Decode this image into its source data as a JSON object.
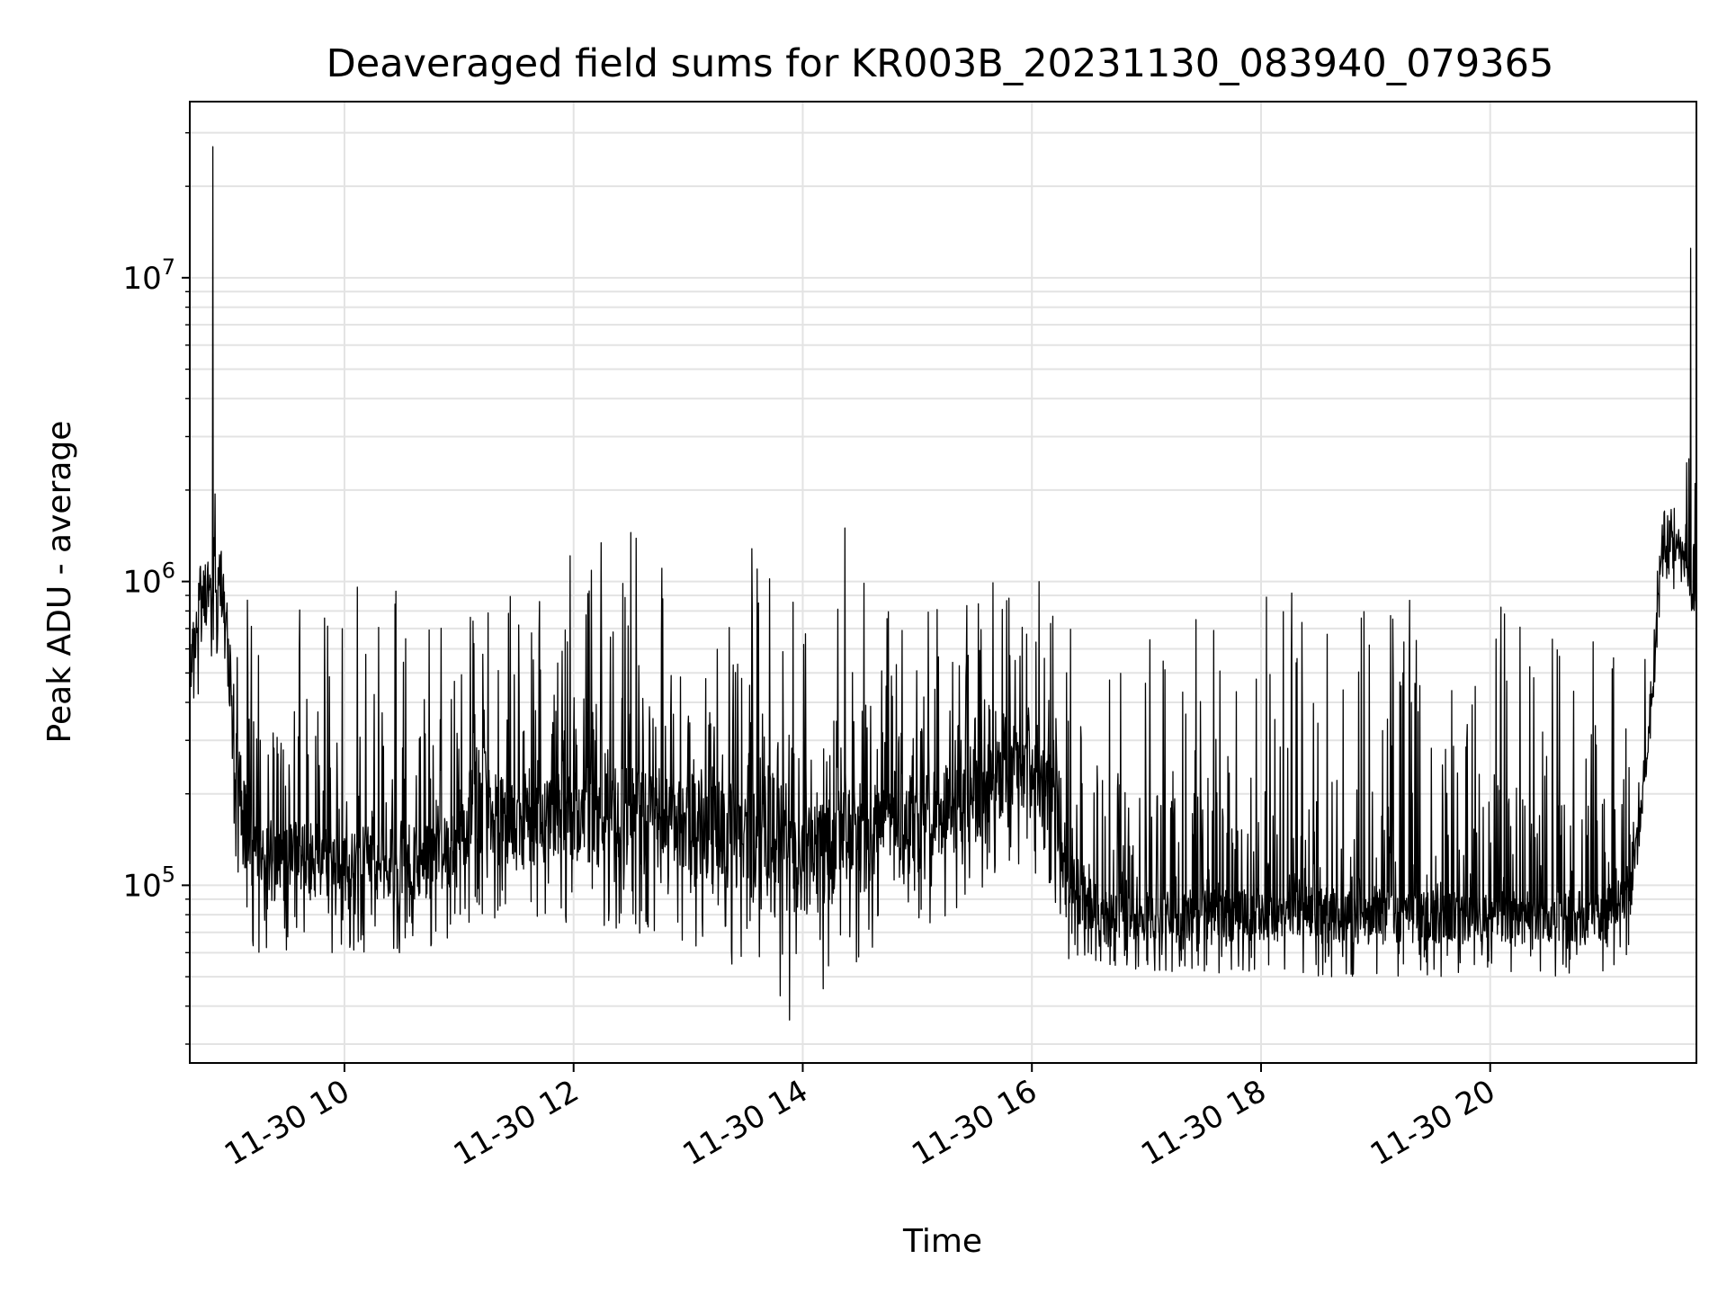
{
  "chart_data": {
    "type": "line",
    "title": "Deaveraged field sums for KR003B_20231130_083940_079365",
    "xlabel": "Time",
    "ylabel": "Peak ADU - average",
    "yscale": "log",
    "ylim": [
      26000,
      38000000
    ],
    "xlim": [
      "2023-11-30 08:39",
      "2023-11-30 21:48"
    ],
    "grid": true,
    "line_color": "#000000",
    "x_ticks": [
      {
        "label": "11-30 10",
        "time": "2023-11-30 10:00"
      },
      {
        "label": "11-30 12",
        "time": "2023-11-30 12:00"
      },
      {
        "label": "11-30 14",
        "time": "2023-11-30 14:00"
      },
      {
        "label": "11-30 16",
        "time": "2023-11-30 16:00"
      },
      {
        "label": "11-30 18",
        "time": "2023-11-30 18:00"
      },
      {
        "label": "11-30 20",
        "time": "2023-11-30 20:00"
      }
    ],
    "y_ticks": [
      {
        "base": "10",
        "exp": "5",
        "value": 100000
      },
      {
        "base": "10",
        "exp": "6",
        "value": 1000000
      },
      {
        "base": "10",
        "exp": "7",
        "value": 10000000
      }
    ],
    "series": [
      {
        "x": [
          "2023-11-30 08:39",
          "2023-11-30 08:45",
          "2023-11-30 08:50",
          "2023-11-30 08:55",
          "2023-11-30 09:00",
          "2023-11-30 09:05",
          "2023-11-30 09:10",
          "2023-11-30 09:15",
          "2023-11-30 09:20",
          "2023-11-30 09:30",
          "2023-11-30 09:45",
          "2023-11-30 10:00",
          "2023-11-30 10:20",
          "2023-11-30 10:40",
          "2023-11-30 11:00",
          "2023-11-30 11:10",
          "2023-11-30 11:30",
          "2023-11-30 12:00",
          "2023-11-30 12:30",
          "2023-11-30 13:00",
          "2023-11-30 13:30",
          "2023-11-30 13:50",
          "2023-11-30 14:10",
          "2023-11-30 14:30",
          "2023-11-30 15:00",
          "2023-11-30 15:30",
          "2023-11-30 15:50",
          "2023-11-30 16:10",
          "2023-11-30 16:20",
          "2023-11-30 16:40",
          "2023-11-30 17:00",
          "2023-11-30 17:30",
          "2023-11-30 18:00",
          "2023-11-30 18:30",
          "2023-11-30 19:00",
          "2023-11-30 19:30",
          "2023-11-30 20:00",
          "2023-11-30 20:30",
          "2023-11-30 21:00",
          "2023-11-30 21:15",
          "2023-11-30 21:20",
          "2023-11-30 21:25",
          "2023-11-30 21:30",
          "2023-11-30 21:40",
          "2023-11-30 21:48"
        ],
        "y": [
          500000,
          800000,
          1000000,
          1000000,
          500000,
          200000,
          130000,
          120000,
          120000,
          120000,
          120000,
          120000,
          120000,
          120000,
          130000,
          200000,
          150000,
          170000,
          170000,
          160000,
          140000,
          120000,
          130000,
          140000,
          160000,
          190000,
          250000,
          200000,
          100000,
          80000,
          80000,
          80000,
          80000,
          80000,
          78000,
          78000,
          78000,
          78000,
          80000,
          100000,
          200000,
          400000,
          1300000,
          1300000,
          800000
        ],
        "lo": [
          350000,
          450000,
          550000,
          600000,
          250000,
          80000,
          65000,
          60000,
          60000,
          60000,
          60000,
          60000,
          60000,
          60000,
          70000,
          80000,
          75000,
          75000,
          70000,
          65000,
          50000,
          40000,
          45000,
          55000,
          70000,
          90000,
          120000,
          100000,
          55000,
          55000,
          52000,
          52000,
          50000,
          50000,
          50000,
          50000,
          50000,
          50000,
          52000,
          60000,
          160000,
          300000,
          700000,
          1000000,
          600000
        ],
        "hi": [
          900000,
          2500000,
          2200000,
          2000000,
          1000000,
          900000,
          950000,
          1000000,
          1000000,
          1000000,
          1050000,
          1050000,
          1000000,
          950000,
          950000,
          950000,
          900000,
          1300000,
          1450000,
          1000000,
          1400000,
          900000,
          1000000,
          1400000,
          800000,
          900000,
          1200000,
          1000000,
          800000,
          700000,
          800000,
          800000,
          900000,
          950000,
          1000000,
          950000,
          900000,
          900000,
          600000,
          550000,
          550000,
          600000,
          2500000,
          3200000,
          2500000
        ],
        "spikes": [
          {
            "x": "2023-11-30 08:51",
            "y": 27000000
          },
          {
            "x": "2023-11-30 21:45",
            "y": 12500000
          },
          {
            "x": "2023-11-30 13:53",
            "y": 36000
          },
          {
            "x": "2023-11-30 14:22",
            "y": 1500000
          },
          {
            "x": "2023-11-30 12:30",
            "y": 1450000
          }
        ]
      }
    ]
  }
}
